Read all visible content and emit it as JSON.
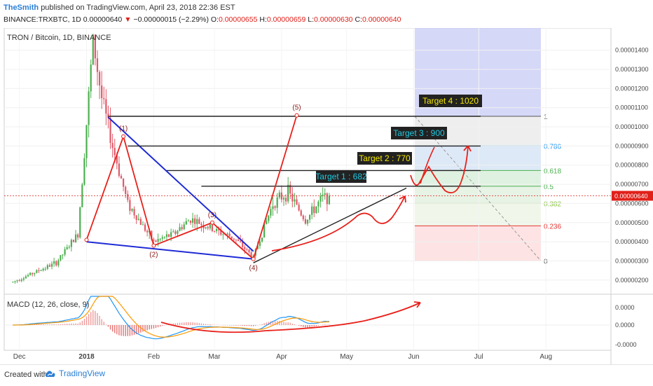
{
  "header": {
    "author": "TheSmith",
    "published": "published on TradingView.com, April 23, 2018 22:36 EST",
    "symbol": "BINANCE:TRXBTC, 1D",
    "last": "0.00000640",
    "arrow": "▼",
    "change": "−0.00000015 (−2.29%)",
    "o_label": "O:",
    "o_val": "0.00000655",
    "h_label": "H:",
    "h_val": "0.00000659",
    "l_label": "L:",
    "l_val": "0.00000630",
    "c_label": "C:",
    "c_val": "0.00000640"
  },
  "footer": {
    "created": "Created with",
    "brand": "TradingView",
    "icon": "tradingview-cloud-icon"
  },
  "colors": {
    "up": "#4caf50",
    "down": "#e05a6a",
    "red": "#e8201a",
    "blue": "#1f2bd6",
    "gold": "#f5e800",
    "cyan": "#20c8e0",
    "macd": "#2196f3",
    "signal": "#ff9800"
  },
  "chart_data": {
    "type": "candlestick",
    "title": "TRON / Bitcoin, 1D, BINANCE",
    "xlabel": "",
    "ylabel": "",
    "x_ticks": [
      "Dec",
      "2018",
      "Feb",
      "Mar",
      "Apr",
      "May",
      "Jun",
      "Jul",
      "Aug"
    ],
    "y_ticks": [
      "0.00001400",
      "0.00001300",
      "0.00001200",
      "0.00001100",
      "0.00001000",
      "0.00000900",
      "0.00000800",
      "0.00000700",
      "0.00000600",
      "0.00000500",
      "0.00000400",
      "0.00000300",
      "0.00000200"
    ],
    "ylim": [
      1.7e-06,
      1.45e-05
    ],
    "last_price_label": "0.00000640",
    "grid": true,
    "price_path": [
      [
        "2017-11-28",
        1.9e-06
      ],
      [
        "2017-12-08",
        2.4e-06
      ],
      [
        "2017-12-18",
        2.9e-06
      ],
      [
        "2017-12-28",
        4.4e-06
      ],
      [
        "2018-01-04",
        1.45e-05
      ],
      [
        "2018-01-08",
        1.15e-05
      ],
      [
        "2018-01-13",
        9e-06
      ],
      [
        "2018-01-20",
        6e-06
      ],
      [
        "2018-02-01",
        4e-06
      ],
      [
        "2018-02-10",
        4.4e-06
      ],
      [
        "2018-02-18",
        5.2e-06
      ],
      [
        "2018-03-01",
        4.6e-06
      ],
      [
        "2018-03-10",
        4.2e-06
      ],
      [
        "2018-03-19",
        3.2e-06
      ],
      [
        "2018-03-28",
        6e-06
      ],
      [
        "2018-04-04",
        6.6e-06
      ],
      [
        "2018-04-12",
        5.1e-06
      ],
      [
        "2018-04-20",
        6.3e-06
      ],
      [
        "2018-04-23",
        6.4e-06
      ]
    ],
    "waves": [
      {
        "label": "(1)",
        "date": "2018-01-18",
        "price": 9.5e-06
      },
      {
        "label": "(2)",
        "date": "2018-02-01",
        "price": 3.8e-06
      },
      {
        "label": "(3)",
        "date": "2018-02-28",
        "price": 5e-06
      },
      {
        "label": "(4)",
        "date": "2018-03-19",
        "price": 3.1e-06
      },
      {
        "label": "(5)",
        "date": "2018-04-08",
        "price": 1.06e-05
      }
    ],
    "wave_start": {
      "date": "2018-01-01",
      "price": 4.1e-06
    },
    "targets": [
      {
        "label": "Target 1 : 682",
        "style": "cyan",
        "price": 6.82e-06
      },
      {
        "label": "Target 2 : 770",
        "style": "gold",
        "price": 7.7e-06
      },
      {
        "label": "Target 3 : 900",
        "style": "cyan",
        "price": 9e-06
      },
      {
        "label": "Target 4 : 1020",
        "style": "gold",
        "price": 1.02e-05
      }
    ],
    "fib_levels": [
      {
        "label": "1",
        "price": 1.055e-05,
        "color": "#555555"
      },
      {
        "label": "0.786",
        "price": 9e-06,
        "color": "#2196f3"
      },
      {
        "label": "0.618",
        "price": 7.72e-06,
        "color": "#4caf50"
      },
      {
        "label": "0.5",
        "price": 6.9e-06,
        "color": "#4caf50"
      },
      {
        "label": "0.382",
        "price": 6e-06,
        "color": "#8bc34a"
      },
      {
        "label": "0.236",
        "price": 4.83e-06,
        "color": "#e53935"
      },
      {
        "label": "0",
        "price": 3e-06,
        "color": "#555555"
      }
    ],
    "macd": {
      "label": "MACD (12, 26, close, 9)",
      "y_ticks": [
        "0.0000",
        "0.0000",
        "-0.0000"
      ]
    }
  }
}
